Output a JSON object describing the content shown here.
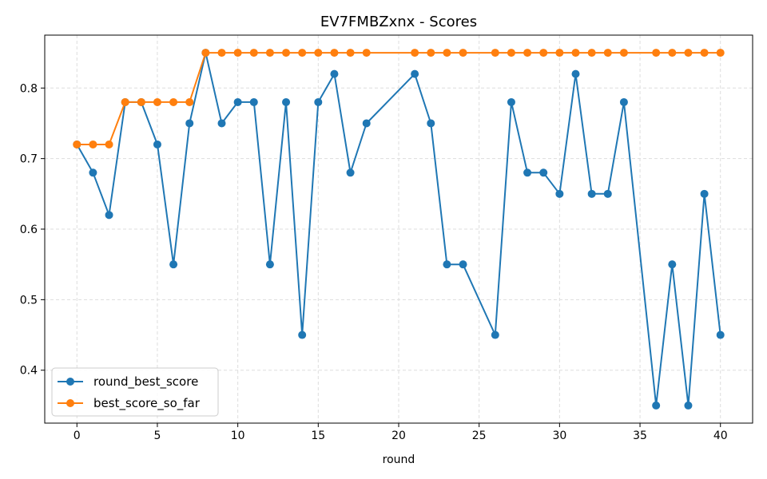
{
  "chart_data": {
    "type": "line",
    "title": "EV7FMBZxnx - Scores",
    "xlabel": "round",
    "ylabel": "",
    "xlim": [
      -2,
      42
    ],
    "ylim": [
      0.325,
      0.875
    ],
    "x_ticks": [
      0,
      5,
      10,
      15,
      20,
      25,
      30,
      35,
      40
    ],
    "y_ticks": [
      0.4,
      0.5,
      0.6,
      0.7,
      0.8
    ],
    "grid": true,
    "grid_style": "dashed",
    "legend_position": "lower-left",
    "series": [
      {
        "name": "round_best_score",
        "color": "#1f77b4",
        "marker": "circle",
        "x": [
          0,
          1,
          2,
          3,
          4,
          5,
          6,
          7,
          8,
          9,
          10,
          11,
          12,
          13,
          14,
          15,
          16,
          17,
          18,
          21,
          22,
          23,
          24,
          26,
          27,
          28,
          29,
          30,
          31,
          32,
          33,
          34,
          36,
          37,
          38,
          39,
          40
        ],
        "values": [
          0.72,
          0.68,
          0.62,
          0.78,
          0.78,
          0.72,
          0.55,
          0.75,
          0.85,
          0.75,
          0.78,
          0.78,
          0.55,
          0.78,
          0.45,
          0.78,
          0.82,
          0.68,
          0.75,
          0.82,
          0.75,
          0.55,
          0.55,
          0.45,
          0.78,
          0.68,
          0.68,
          0.65,
          0.82,
          0.65,
          0.65,
          0.78,
          0.35,
          0.55,
          0.35,
          0.65,
          0.45
        ]
      },
      {
        "name": "best_score_so_far",
        "color": "#ff7f0e",
        "marker": "circle",
        "x": [
          0,
          1,
          2,
          3,
          4,
          5,
          6,
          7,
          8,
          9,
          10,
          11,
          12,
          13,
          14,
          15,
          16,
          17,
          18,
          21,
          22,
          23,
          24,
          26,
          27,
          28,
          29,
          30,
          31,
          32,
          33,
          34,
          36,
          37,
          38,
          39,
          40
        ],
        "values": [
          0.72,
          0.72,
          0.72,
          0.78,
          0.78,
          0.78,
          0.78,
          0.78,
          0.85,
          0.85,
          0.85,
          0.85,
          0.85,
          0.85,
          0.85,
          0.85,
          0.85,
          0.85,
          0.85,
          0.85,
          0.85,
          0.85,
          0.85,
          0.85,
          0.85,
          0.85,
          0.85,
          0.85,
          0.85,
          0.85,
          0.85,
          0.85,
          0.85,
          0.85,
          0.85,
          0.85,
          0.85
        ]
      }
    ]
  }
}
